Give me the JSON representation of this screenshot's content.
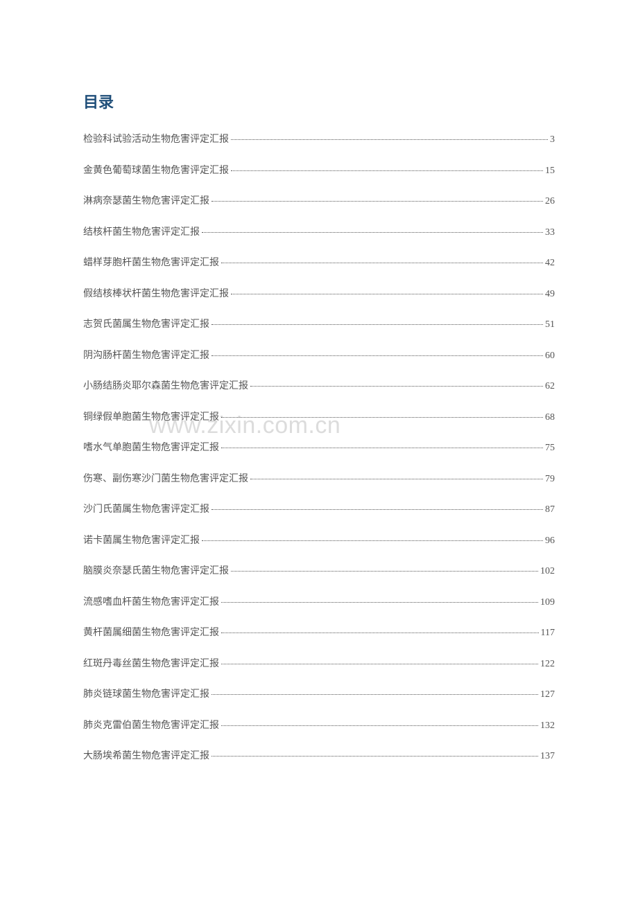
{
  "toc": {
    "title": "目录",
    "title_color": "#1f4e79",
    "title_fontsize": 22,
    "item_color": "#555555",
    "item_fontsize": 14,
    "background_color": "#ffffff",
    "items": [
      {
        "label": "检验科试验活动生物危害评定汇报",
        "page": "3"
      },
      {
        "label": "金黄色葡萄球菌生物危害评定汇报",
        "page": "15"
      },
      {
        "label": "淋病奈瑟菌生物危害评定汇报",
        "page": "26"
      },
      {
        "label": "结核杆菌生物危害评定汇报",
        "page": "33"
      },
      {
        "label": "蜡样芽胞杆菌生物危害评定汇报",
        "page": "42"
      },
      {
        "label": "假结核棒状杆菌生物危害评定汇报",
        "page": "49"
      },
      {
        "label": "志贺氏菌属生物危害评定汇报",
        "page": "51"
      },
      {
        "label": "阴沟肠杆菌生物危害评定汇报",
        "page": "60"
      },
      {
        "label": "小肠结肠炎耶尔森菌生物危害评定汇报",
        "page": "62"
      },
      {
        "label": "铜绿假单胞菌生物危害评定汇报",
        "page": "68"
      },
      {
        "label": "嗜水气单胞菌生物危害评定汇报",
        "page": "75"
      },
      {
        "label": "伤寒、副伤寒沙门菌生物危害评定汇报",
        "page": "79"
      },
      {
        "label": "沙门氏菌属生物危害评定汇报",
        "page": "87"
      },
      {
        "label": "诺卡菌属生物危害评定汇报",
        "page": "96"
      },
      {
        "label": "脑膜炎奈瑟氏菌生物危害评定汇报",
        "page": "102"
      },
      {
        "label": "流感嗜血杆菌生物危害评定汇报",
        "page": "109"
      },
      {
        "label": "黄杆菌属细菌生物危害评定汇报",
        "page": "117"
      },
      {
        "label": "红斑丹毒丝菌生物危害评定汇报",
        "page": "122"
      },
      {
        "label": "肺炎链球菌生物危害评定汇报",
        "page": "127"
      },
      {
        "label": "肺炎克雷伯菌生物危害评定汇报",
        "page": "132"
      },
      {
        "label": "大肠埃希菌生物危害评定汇报",
        "page": "137"
      }
    ]
  },
  "watermark": {
    "text": "www.zixin.com.cn",
    "color": "#dcdcdc",
    "fontsize": 34
  }
}
